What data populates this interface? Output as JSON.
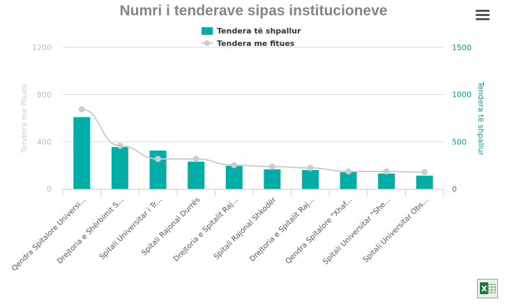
{
  "chart_data": {
    "type": "bar+line",
    "title": "Numri i tenderave sipas institucioneve",
    "categories": [
      "Qendra Spitalore Universi...",
      "Drejtoria e Shërbimit S...",
      "Spitali Universitar i Tr...",
      "Spitali Rajonal Durrës",
      "Drejtoria e Spitalit Raj...",
      "Spitali Rajonal Shkodër",
      "Drejtoria e Spitalit Raj...",
      "Qendra Spitalore \"Xhaf...",
      "Spitali Universitar \"She...",
      "Spitali Universitar Obs..."
    ],
    "series": [
      {
        "name": "Tendera të shpallur",
        "type": "bar",
        "axis": "right",
        "color": "#00ada7",
        "values": [
          760,
          443,
          406,
          288,
          244,
          207,
          200,
          177,
          163,
          140
        ]
      },
      {
        "name": "Tendera me fitues",
        "type": "line",
        "axis": "left",
        "color": "#cccccc",
        "values": [
          675,
          366,
          254,
          254,
          201,
          189,
          177,
          148,
          148,
          142
        ]
      }
    ],
    "left_axis": {
      "label": "Tendera me fitues",
      "range": [
        0,
        1200
      ],
      "ticks": [
        "0",
        "400",
        "800",
        "1200"
      ]
    },
    "right_axis": {
      "label": "Tendera të shpallur",
      "range": [
        0,
        1500
      ],
      "ticks": [
        "0",
        "500",
        "1000",
        "1500"
      ]
    },
    "grid": true,
    "legend_position": "top-center"
  },
  "menu_icon": "hamburger-menu-icon",
  "export_icon": "excel-icon"
}
